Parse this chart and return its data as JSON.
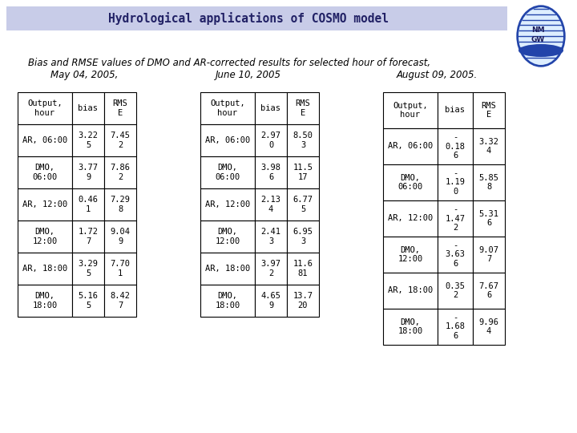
{
  "title": "Hydrological applications of COSMO model",
  "subtitle_line1": "Bias and RMSE values of DMO and AR-corrected results for selected hour of forecast,",
  "subtitle_line2_parts": [
    "May 04, 2005,",
    "June 10, 2005",
    "August 09, 2005."
  ],
  "header_bg": "#c8cce8",
  "bg_color": "#ffffff",
  "title_color": "#222266",
  "table1": {
    "headers": [
      "Output,\nhour",
      "bias",
      "RMS\nE"
    ],
    "rows": [
      [
        "AR, 06:00",
        "3.22\n5",
        "7.45\n2"
      ],
      [
        "DMO,\n06:00",
        "3.77\n9",
        "7.86\n2"
      ],
      [
        "AR, 12:00",
        "0.46\n1",
        "7.29\n8"
      ],
      [
        "DMO,\n12:00",
        "1.72\n7",
        "9.04\n9"
      ],
      [
        "AR, 18:00",
        "3.29\n5",
        "7.70\n1"
      ],
      [
        "DMO,\n18:00",
        "5.16\n5",
        "8.42\n7"
      ]
    ]
  },
  "table2": {
    "headers": [
      "Output,\nhour",
      "bias",
      "RMS\nE"
    ],
    "rows": [
      [
        "AR, 06:00",
        "2.97\n0",
        "8.50\n3"
      ],
      [
        "DMO,\n06:00",
        "3.98\n6",
        "11.5\n17"
      ],
      [
        "AR, 12:00",
        "2.13\n4",
        "6.77\n5"
      ],
      [
        "DMO,\n12:00",
        "2.41\n3",
        "6.95\n3"
      ],
      [
        "AR, 18:00",
        "3.97\n2",
        "11.6\n81"
      ],
      [
        "DMO,\n18:00",
        "4.65\n9",
        "13.7\n20"
      ]
    ]
  },
  "table3": {
    "headers": [
      "Output,\nhour",
      "bias",
      "RMS\nE"
    ],
    "rows": [
      [
        "AR, 06:00",
        "-\n0.18\n6",
        "3.32\n4"
      ],
      [
        "DMO,\n06:00",
        "-\n1.19\n0",
        "5.85\n8"
      ],
      [
        "AR, 12:00",
        "-\n1.47\n2",
        "5.31\n6"
      ],
      [
        "DMO,\n12:00",
        "-\n3.63\n6",
        "9.07\n7"
      ],
      [
        "AR, 18:00",
        "0.35\n2",
        "7.67\n6"
      ],
      [
        "DMO,\n18:00",
        "-\n1.68\n6",
        "9.96\n4"
      ]
    ]
  }
}
